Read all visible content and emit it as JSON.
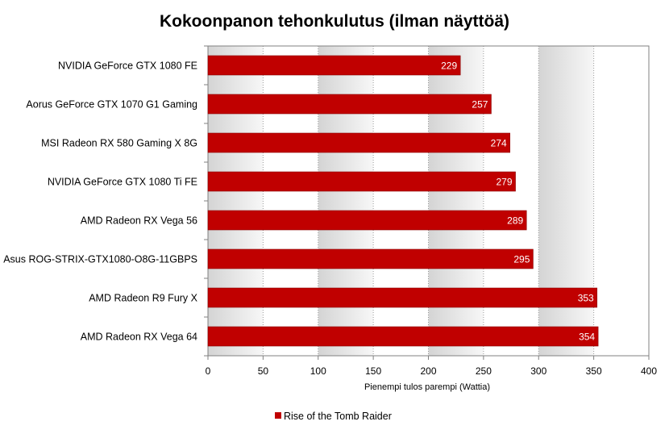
{
  "chart_data": {
    "type": "bar",
    "orientation": "horizontal",
    "title": "Kokoonpanon tehonkulutus (ilman näyttöä)",
    "xlabel": "Pienempi tulos parempi (Wattia)",
    "ylabel": "",
    "categories": [
      "NVIDIA GeForce GTX 1080 FE",
      "Aorus GeForce GTX 1070 G1 Gaming",
      "MSI Radeon RX 580 Gaming X 8G",
      "NVIDIA GeForce GTX 1080 Ti FE",
      "AMD Radeon RX Vega 56",
      "Asus ROG-STRIX-GTX1080-O8G-11GBPS",
      "AMD Radeon R9 Fury X",
      "AMD Radeon RX Vega 64"
    ],
    "series": [
      {
        "name": "Rise of the Tomb Raider",
        "values": [
          229,
          257,
          274,
          279,
          289,
          295,
          353,
          354
        ],
        "color": "#c00000"
      }
    ],
    "xlim": [
      0,
      400
    ],
    "xticks": [
      0,
      50,
      100,
      150,
      200,
      250,
      300,
      350,
      400
    ],
    "grid": "vertical, dotted",
    "background": "alternating gray bands",
    "data_labels": true,
    "legend_position": "bottom"
  }
}
